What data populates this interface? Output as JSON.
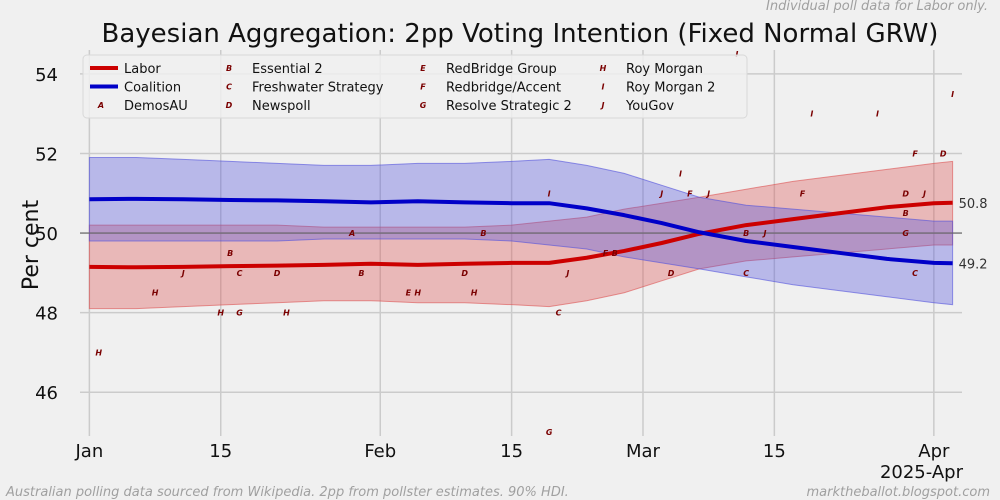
{
  "chart_data": {
    "type": "line",
    "title": "Bayesian Aggregation: 2pp Voting Intention (Fixed Normal GRW)",
    "ylabel": "Per cent",
    "xlabel": "2025-Apr",
    "x_axis": {
      "start": "2025-01-01",
      "end": "2025-04-03",
      "ticks": [
        {
          "label": "Jan",
          "day": 0
        },
        {
          "label": "15",
          "day": 14
        },
        {
          "label": "Feb",
          "day": 31
        },
        {
          "label": "15",
          "day": 45
        },
        {
          "label": "Mar",
          "day": 59
        },
        {
          "label": "15",
          "day": 73
        },
        {
          "label": "Apr",
          "day": 90
        }
      ]
    },
    "ylim": [
      44.9,
      54.6
    ],
    "yticks": [
      46,
      48,
      50,
      52,
      54
    ],
    "reference_line": 50,
    "series": [
      {
        "name": "Labor",
        "color": "#cc0000",
        "band_color": "rgba(220,80,80,0.35)",
        "end_label": "50.8",
        "points": [
          {
            "day": 0,
            "value": 49.15,
            "low": 48.1,
            "high": 50.2
          },
          {
            "day": 5,
            "value": 49.14,
            "low": 48.1,
            "high": 50.2
          },
          {
            "day": 10,
            "value": 49.15,
            "low": 48.15,
            "high": 50.2
          },
          {
            "day": 15,
            "value": 49.17,
            "low": 48.2,
            "high": 50.2
          },
          {
            "day": 20,
            "value": 49.18,
            "low": 48.25,
            "high": 50.2
          },
          {
            "day": 25,
            "value": 49.2,
            "low": 48.3,
            "high": 50.15
          },
          {
            "day": 30,
            "value": 49.23,
            "low": 48.3,
            "high": 50.15
          },
          {
            "day": 35,
            "value": 49.2,
            "low": 48.25,
            "high": 50.15
          },
          {
            "day": 40,
            "value": 49.23,
            "low": 48.25,
            "high": 50.15
          },
          {
            "day": 45,
            "value": 49.25,
            "low": 48.2,
            "high": 50.2
          },
          {
            "day": 49,
            "value": 49.25,
            "low": 48.15,
            "high": 50.3
          },
          {
            "day": 53,
            "value": 49.38,
            "low": 48.3,
            "high": 50.4
          },
          {
            "day": 57,
            "value": 49.55,
            "low": 48.5,
            "high": 50.6
          },
          {
            "day": 61,
            "value": 49.75,
            "low": 48.8,
            "high": 50.75
          },
          {
            "day": 65,
            "value": 49.98,
            "low": 49.1,
            "high": 50.9
          },
          {
            "day": 70,
            "value": 50.2,
            "low": 49.3,
            "high": 51.1
          },
          {
            "day": 75,
            "value": 50.35,
            "low": 49.4,
            "high": 51.3
          },
          {
            "day": 80,
            "value": 50.5,
            "low": 49.5,
            "high": 51.45
          },
          {
            "day": 85,
            "value": 50.65,
            "low": 49.6,
            "high": 51.6
          },
          {
            "day": 90,
            "value": 50.75,
            "low": 49.7,
            "high": 51.75
          },
          {
            "day": 92,
            "value": 50.76,
            "low": 49.7,
            "high": 51.8
          }
        ]
      },
      {
        "name": "Coalition",
        "color": "#0000c8",
        "band_color": "rgba(80,80,220,0.35)",
        "end_label": "49.2",
        "points": [
          {
            "day": 0,
            "value": 50.85,
            "low": 49.8,
            "high": 51.9
          },
          {
            "day": 5,
            "value": 50.86,
            "low": 49.8,
            "high": 51.9
          },
          {
            "day": 10,
            "value": 50.85,
            "low": 49.8,
            "high": 51.85
          },
          {
            "day": 15,
            "value": 50.83,
            "low": 49.8,
            "high": 51.8
          },
          {
            "day": 20,
            "value": 50.82,
            "low": 49.8,
            "high": 51.75
          },
          {
            "day": 25,
            "value": 50.8,
            "low": 49.85,
            "high": 51.7
          },
          {
            "day": 30,
            "value": 50.77,
            "low": 49.85,
            "high": 51.7
          },
          {
            "day": 35,
            "value": 50.8,
            "low": 49.85,
            "high": 51.75
          },
          {
            "day": 40,
            "value": 50.77,
            "low": 49.85,
            "high": 51.75
          },
          {
            "day": 45,
            "value": 50.75,
            "low": 49.8,
            "high": 51.8
          },
          {
            "day": 49,
            "value": 50.75,
            "low": 49.7,
            "high": 51.85
          },
          {
            "day": 53,
            "value": 50.62,
            "low": 49.6,
            "high": 51.7
          },
          {
            "day": 57,
            "value": 50.45,
            "low": 49.4,
            "high": 51.5
          },
          {
            "day": 61,
            "value": 50.25,
            "low": 49.25,
            "high": 51.2
          },
          {
            "day": 65,
            "value": 50.02,
            "low": 49.1,
            "high": 50.9
          },
          {
            "day": 70,
            "value": 49.8,
            "low": 48.9,
            "high": 50.7
          },
          {
            "day": 75,
            "value": 49.65,
            "low": 48.7,
            "high": 50.6
          },
          {
            "day": 80,
            "value": 49.5,
            "low": 48.55,
            "high": 50.5
          },
          {
            "day": 85,
            "value": 49.35,
            "low": 48.4,
            "high": 50.4
          },
          {
            "day": 90,
            "value": 49.25,
            "low": 48.25,
            "high": 50.3
          },
          {
            "day": 92,
            "value": 49.24,
            "low": 48.2,
            "high": 50.3
          }
        ]
      }
    ],
    "pollsters": [
      {
        "code": "A",
        "name": "DemosAU"
      },
      {
        "code": "B",
        "name": "Essential 2"
      },
      {
        "code": "C",
        "name": "Freshwater Strategy"
      },
      {
        "code": "D",
        "name": "Newspoll"
      },
      {
        "code": "E",
        "name": "RedBridge Group"
      },
      {
        "code": "F",
        "name": "Redbridge/Accent"
      },
      {
        "code": "G",
        "name": "Resolve Strategic 2"
      },
      {
        "code": "H",
        "name": "Roy Morgan"
      },
      {
        "code": "I",
        "name": "Roy Morgan 2"
      },
      {
        "code": "J",
        "name": "YouGov"
      }
    ],
    "polls": [
      {
        "code": "H",
        "day": 1,
        "value": 47.0
      },
      {
        "code": "H",
        "day": 7,
        "value": 48.5
      },
      {
        "code": "J",
        "day": 10,
        "value": 49.0
      },
      {
        "code": "H",
        "day": 14,
        "value": 48.0
      },
      {
        "code": "G",
        "day": 16,
        "value": 48.0
      },
      {
        "code": "B",
        "day": 15,
        "value": 49.5
      },
      {
        "code": "C",
        "day": 16,
        "value": 49.0
      },
      {
        "code": "D",
        "day": 20,
        "value": 49.0
      },
      {
        "code": "H",
        "day": 21,
        "value": 48.0
      },
      {
        "code": "A",
        "day": 28,
        "value": 50.0
      },
      {
        "code": "B",
        "day": 29,
        "value": 49.0
      },
      {
        "code": "E",
        "day": 34,
        "value": 48.5
      },
      {
        "code": "H",
        "day": 35,
        "value": 48.5
      },
      {
        "code": "D",
        "day": 40,
        "value": 49.0
      },
      {
        "code": "H",
        "day": 41,
        "value": 48.5
      },
      {
        "code": "B",
        "day": 42,
        "value": 50.0
      },
      {
        "code": "I",
        "day": 49,
        "value": 51.0
      },
      {
        "code": "G",
        "day": 49,
        "value": 45.0
      },
      {
        "code": "J",
        "day": 51,
        "value": 49.0
      },
      {
        "code": "C",
        "day": 50,
        "value": 48.0
      },
      {
        "code": "F",
        "day": 55,
        "value": 49.5
      },
      {
        "code": "B",
        "day": 56,
        "value": 49.5
      },
      {
        "code": "J",
        "day": 61,
        "value": 51.0
      },
      {
        "code": "D",
        "day": 62,
        "value": 49.0
      },
      {
        "code": "I",
        "day": 63,
        "value": 51.5
      },
      {
        "code": "F",
        "day": 64,
        "value": 51.0
      },
      {
        "code": "J",
        "day": 66,
        "value": 51.0
      },
      {
        "code": "I",
        "day": 69,
        "value": 54.5
      },
      {
        "code": "B",
        "day": 70,
        "value": 50.0
      },
      {
        "code": "J",
        "day": 72,
        "value": 50.0
      },
      {
        "code": "C",
        "day": 70,
        "value": 49.0
      },
      {
        "code": "F",
        "day": 76,
        "value": 51.0
      },
      {
        "code": "I",
        "day": 77,
        "value": 53.0
      },
      {
        "code": "I",
        "day": 84,
        "value": 53.0
      },
      {
        "code": "D",
        "day": 87,
        "value": 51.0
      },
      {
        "code": "B",
        "day": 87,
        "value": 50.5
      },
      {
        "code": "G",
        "day": 87,
        "value": 50.0
      },
      {
        "code": "C",
        "day": 88,
        "value": 49.0
      },
      {
        "code": "F",
        "day": 88,
        "value": 52.0
      },
      {
        "code": "J",
        "day": 89,
        "value": 51.0
      },
      {
        "code": "D",
        "day": 91,
        "value": 52.0
      },
      {
        "code": "I",
        "day": 92,
        "value": 53.5
      }
    ],
    "legend_position": "top-left",
    "grid": true
  },
  "notes": {
    "top_right": "Individual poll data for Labor only.",
    "bottom_left": "Australian polling data sourced from Wikipedia. 2pp from pollster estimates. 90% HDI.",
    "bottom_right": "marktheballot.blogspot.com"
  }
}
